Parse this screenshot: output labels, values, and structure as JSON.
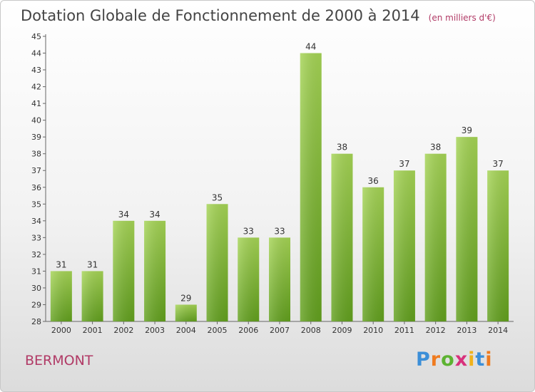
{
  "header": {
    "title": "Dotation Globale de Fonctionnement de 2000 à 2014",
    "unit": "(en milliers d'€)"
  },
  "footer": {
    "commune": "BERMONT",
    "logo_letters": [
      "P",
      "r",
      "o",
      "x",
      "i",
      "t",
      "i"
    ],
    "logo_colors": [
      "#3c8fd8",
      "#ef7b1f",
      "#5db332",
      "#d8317c",
      "#f0b21c",
      "#3c8fd8",
      "#ef7b1f"
    ]
  },
  "chart_data": {
    "type": "bar",
    "title": "Dotation Globale de Fonctionnement de 2000 à 2014",
    "subtitle": "(en milliers d'€)",
    "categories": [
      "2000",
      "2001",
      "2002",
      "2003",
      "2004",
      "2005",
      "2006",
      "2007",
      "2008",
      "2009",
      "2010",
      "2011",
      "2012",
      "2013",
      "2014"
    ],
    "values": [
      31,
      31,
      34,
      34,
      29,
      35,
      33,
      33,
      44,
      38,
      36,
      37,
      38,
      39,
      37
    ],
    "ylim": [
      28,
      45
    ],
    "yticks": [
      28,
      29,
      30,
      31,
      32,
      33,
      34,
      35,
      36,
      37,
      38,
      39,
      40,
      41,
      42,
      43,
      44,
      45
    ],
    "grid": false,
    "bar_color_top": "#a5d455",
    "bar_color_bottom": "#62a01e"
  }
}
